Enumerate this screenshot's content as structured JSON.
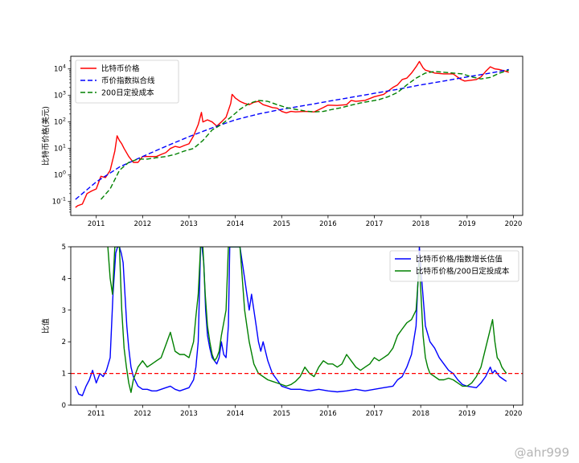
{
  "watermark": "@ahr999",
  "chart_data": [
    {
      "type": "line",
      "xlabel": "",
      "ylabel": "比特币价格(美元)",
      "yscale": "log",
      "xlim": [
        2010.45,
        2020.2
      ],
      "ylim": [
        0.03,
        30000
      ],
      "x_ticks": [
        "2011",
        "2012",
        "2013",
        "2014",
        "2015",
        "2016",
        "2017",
        "2018",
        "2019",
        "2020"
      ],
      "y_ticks": [
        {
          "value": 0.1,
          "base": "10",
          "exp": "-1"
        },
        {
          "value": 1,
          "base": "10",
          "exp": "0"
        },
        {
          "value": 10,
          "base": "10",
          "exp": "1"
        },
        {
          "value": 100,
          "base": "10",
          "exp": "2"
        },
        {
          "value": 1000,
          "base": "10",
          "exp": "3"
        },
        {
          "value": 10000,
          "base": "10",
          "exp": "4"
        }
      ],
      "legend_position": "top-left",
      "series": [
        {
          "name": "比特币价格",
          "color": "#ff0000",
          "style": "solid",
          "x": [
            2010.55,
            2010.6,
            2010.7,
            2010.8,
            2010.9,
            2011.0,
            2011.1,
            2011.2,
            2011.3,
            2011.4,
            2011.45,
            2011.5,
            2011.55,
            2011.6,
            2011.7,
            2011.8,
            2011.9,
            2012.0,
            2012.1,
            2012.2,
            2012.3,
            2012.4,
            2012.5,
            2012.6,
            2012.7,
            2012.8,
            2012.9,
            2013.0,
            2013.1,
            2013.2,
            2013.27,
            2013.3,
            2013.4,
            2013.5,
            2013.6,
            2013.7,
            2013.8,
            2013.9,
            2013.93,
            2014.0,
            2014.1,
            2014.2,
            2014.3,
            2014.4,
            2014.5,
            2014.6,
            2014.7,
            2014.8,
            2014.9,
            2015.0,
            2015.1,
            2015.2,
            2015.3,
            2015.5,
            2015.7,
            2015.9,
            2016.0,
            2016.2,
            2016.4,
            2016.5,
            2016.6,
            2016.8,
            2017.0,
            2017.2,
            2017.4,
            2017.5,
            2017.6,
            2017.7,
            2017.8,
            2017.9,
            2017.97,
            2018.05,
            2018.1,
            2018.2,
            2018.3,
            2018.5,
            2018.7,
            2018.87,
            2018.95,
            2019.0,
            2019.2,
            2019.3,
            2019.4,
            2019.5,
            2019.6,
            2019.7,
            2019.8,
            2019.9
          ],
          "y": [
            0.06,
            0.07,
            0.08,
            0.2,
            0.25,
            0.3,
            0.9,
            0.8,
            1.5,
            8,
            30,
            20,
            15,
            10,
            5,
            3,
            3,
            5,
            5,
            5,
            5,
            6,
            7,
            10,
            12,
            11,
            13,
            15,
            30,
            80,
            230,
            100,
            120,
            100,
            70,
            100,
            150,
            500,
            1100,
            800,
            600,
            500,
            450,
            550,
            600,
            450,
            400,
            350,
            330,
            250,
            220,
            250,
            240,
            250,
            240,
            350,
            430,
            420,
            450,
            650,
            600,
            650,
            900,
            1100,
            2000,
            2500,
            4000,
            4500,
            7000,
            12000,
            19000,
            11000,
            9000,
            8000,
            7000,
            6500,
            6500,
            4000,
            3500,
            3600,
            4000,
            5000,
            8000,
            12000,
            10000,
            9500,
            8500,
            7500
          ]
        },
        {
          "name": "币价指数拟合线",
          "color": "#0000ff",
          "style": "dashed",
          "x": [
            2010.55,
            2011.0,
            2011.5,
            2012.0,
            2012.5,
            2013.0,
            2013.5,
            2014.0,
            2014.5,
            2015.0,
            2015.5,
            2016.0,
            2016.5,
            2017.0,
            2017.5,
            2018.0,
            2018.5,
            2019.0,
            2019.5,
            2019.9
          ],
          "y": [
            0.12,
            0.55,
            2,
            5,
            12,
            28,
            60,
            120,
            200,
            300,
            420,
            600,
            850,
            1200,
            1700,
            2500,
            3500,
            5000,
            7000,
            9500
          ]
        },
        {
          "name": "200日定投成本",
          "color": "#008000",
          "style": "dashed",
          "x": [
            2011.1,
            2011.3,
            2011.5,
            2011.7,
            2011.9,
            2012.1,
            2012.3,
            2012.5,
            2012.7,
            2012.9,
            2013.1,
            2013.3,
            2013.5,
            2013.7,
            2013.9,
            2014.1,
            2014.3,
            2014.5,
            2014.7,
            2014.9,
            2015.1,
            2015.3,
            2015.5,
            2015.7,
            2015.9,
            2016.1,
            2016.3,
            2016.5,
            2016.7,
            2016.9,
            2017.1,
            2017.3,
            2017.5,
            2017.7,
            2017.9,
            2018.1,
            2018.3,
            2018.5,
            2018.7,
            2018.9,
            2019.1,
            2019.3,
            2019.5,
            2019.7,
            2019.9
          ],
          "y": [
            0.12,
            0.3,
            1.5,
            3,
            4,
            4,
            4.5,
            5,
            6,
            8,
            10,
            20,
            50,
            80,
            150,
            300,
            500,
            650,
            600,
            450,
            350,
            300,
            260,
            240,
            250,
            300,
            350,
            430,
            520,
            600,
            700,
            900,
            1300,
            2500,
            4500,
            7000,
            8000,
            7500,
            7000,
            6500,
            5000,
            4200,
            4800,
            7000,
            9000
          ]
        }
      ]
    },
    {
      "type": "line",
      "xlabel": "",
      "ylabel": "比值",
      "xlim": [
        2010.45,
        2020.2
      ],
      "ylim": [
        0,
        5
      ],
      "x_ticks": [
        "2011",
        "2012",
        "2013",
        "2014",
        "2015",
        "2016",
        "2017",
        "2018",
        "2019",
        "2020"
      ],
      "y_ticks": [
        "0",
        "1",
        "2",
        "3",
        "4",
        "5"
      ],
      "reference_line": {
        "y": 1,
        "color": "#ff0000",
        "style": "dashed"
      },
      "legend_position": "top-right",
      "series": [
        {
          "name": "比特币价格/指数增长估值",
          "color": "#0000ff",
          "style": "solid",
          "x": [
            2010.55,
            2010.62,
            2010.7,
            2010.78,
            2010.85,
            2010.92,
            2011.0,
            2011.08,
            2011.15,
            2011.22,
            2011.3,
            2011.36,
            2011.42,
            2011.46,
            2011.5,
            2011.54,
            2011.58,
            2011.62,
            2011.66,
            2011.7,
            2011.75,
            2011.8,
            2011.9,
            2012.0,
            2012.1,
            2012.2,
            2012.3,
            2012.4,
            2012.5,
            2012.6,
            2012.7,
            2012.8,
            2012.9,
            2013.0,
            2013.1,
            2013.15,
            2013.2,
            2013.25,
            2013.28,
            2013.32,
            2013.36,
            2013.4,
            2013.45,
            2013.5,
            2013.55,
            2013.6,
            2013.65,
            2013.7,
            2013.75,
            2013.8,
            2013.85,
            2013.88,
            2013.92,
            2013.96,
            2014.0,
            2014.05,
            2014.1,
            2014.15,
            2014.2,
            2014.25,
            2014.3,
            2014.35,
            2014.4,
            2014.45,
            2014.5,
            2014.55,
            2014.6,
            2014.7,
            2014.8,
            2014.9,
            2015.0,
            2015.2,
            2015.4,
            2015.6,
            2015.8,
            2016.0,
            2016.2,
            2016.4,
            2016.6,
            2016.8,
            2017.0,
            2017.2,
            2017.4,
            2017.5,
            2017.6,
            2017.7,
            2017.8,
            2017.9,
            2017.97,
            2018.02,
            2018.1,
            2018.2,
            2018.3,
            2018.4,
            2018.5,
            2018.6,
            2018.7,
            2018.8,
            2018.9,
            2019.0,
            2019.2,
            2019.3,
            2019.4,
            2019.5,
            2019.55,
            2019.6,
            2019.7,
            2019.8,
            2019.85
          ],
          "y": [
            0.6,
            0.35,
            0.3,
            0.6,
            0.8,
            1.1,
            0.7,
            1.0,
            0.9,
            1.1,
            1.5,
            3.5,
            4.8,
            5,
            5,
            4.8,
            4.5,
            3.5,
            2.5,
            1.8,
            1.2,
            0.9,
            0.6,
            0.5,
            0.5,
            0.45,
            0.45,
            0.5,
            0.55,
            0.6,
            0.5,
            0.45,
            0.5,
            0.55,
            0.8,
            1.2,
            2.0,
            5,
            5,
            4.5,
            3,
            2.2,
            1.8,
            1.5,
            1.4,
            1.3,
            1.5,
            2.0,
            1.6,
            1.5,
            2.5,
            5,
            5,
            5,
            5,
            5,
            5,
            4.5,
            4.0,
            3.5,
            3.0,
            3.5,
            3.0,
            2.5,
            2.0,
            1.7,
            2.0,
            1.4,
            1.0,
            0.8,
            0.6,
            0.5,
            0.5,
            0.45,
            0.5,
            0.45,
            0.42,
            0.45,
            0.5,
            0.45,
            0.5,
            0.55,
            0.6,
            0.8,
            0.9,
            1.2,
            1.6,
            2.5,
            5,
            4.0,
            2.5,
            2.0,
            1.8,
            1.5,
            1.3,
            1.1,
            1.0,
            0.8,
            0.65,
            0.6,
            0.55,
            0.7,
            0.9,
            1.2,
            1.0,
            1.1,
            0.9,
            0.8,
            0.75
          ]
        },
        {
          "name": "比特币价格/200日定投成本",
          "color": "#008000",
          "style": "solid",
          "x": [
            2011.25,
            2011.3,
            2011.35,
            2011.4,
            2011.45,
            2011.5,
            2011.55,
            2011.6,
            2011.65,
            2011.7,
            2011.75,
            2011.8,
            2011.85,
            2011.9,
            2012.0,
            2012.1,
            2012.2,
            2012.3,
            2012.4,
            2012.5,
            2012.6,
            2012.65,
            2012.7,
            2012.8,
            2012.9,
            2013.0,
            2013.1,
            2013.15,
            2013.2,
            2013.25,
            2013.3,
            2013.35,
            2013.4,
            2013.45,
            2013.5,
            2013.55,
            2013.6,
            2013.65,
            2013.7,
            2013.75,
            2013.8,
            2013.85,
            2013.9,
            2013.95,
            2014.0,
            2014.05,
            2014.1,
            2014.15,
            2014.2,
            2014.25,
            2014.3,
            2014.4,
            2014.5,
            2014.6,
            2014.7,
            2014.8,
            2014.9,
            2015.0,
            2015.1,
            2015.2,
            2015.3,
            2015.4,
            2015.5,
            2015.6,
            2015.7,
            2015.8,
            2015.9,
            2016.0,
            2016.1,
            2016.2,
            2016.3,
            2016.4,
            2016.5,
            2016.6,
            2016.7,
            2016.8,
            2016.9,
            2017.0,
            2017.1,
            2017.2,
            2017.3,
            2017.4,
            2017.5,
            2017.6,
            2017.7,
            2017.8,
            2017.9,
            2017.97,
            2018.05,
            2018.1,
            2018.15,
            2018.2,
            2018.3,
            2018.4,
            2018.5,
            2018.6,
            2018.7,
            2018.8,
            2018.9,
            2019.0,
            2019.1,
            2019.2,
            2019.3,
            2019.4,
            2019.5,
            2019.55,
            2019.6,
            2019.65,
            2019.7,
            2019.75,
            2019.8,
            2019.85
          ],
          "y": [
            5,
            4.0,
            3.5,
            5,
            5,
            5,
            3,
            1.8,
            1.2,
            0.7,
            0.4,
            0.8,
            1.0,
            1.2,
            1.4,
            1.2,
            1.3,
            1.4,
            1.5,
            1.9,
            2.3,
            2.0,
            1.7,
            1.6,
            1.6,
            1.5,
            2.0,
            2.8,
            3.5,
            5,
            5,
            3.5,
            2.5,
            2.0,
            1.6,
            1.4,
            1.5,
            1.7,
            2.2,
            2.6,
            3.0,
            5,
            5,
            5,
            5,
            5,
            5,
            4.0,
            3.0,
            2.5,
            2.0,
            1.3,
            1.0,
            0.9,
            0.8,
            0.75,
            0.7,
            0.65,
            0.6,
            0.65,
            0.75,
            0.9,
            1.2,
            1.0,
            0.9,
            1.2,
            1.4,
            1.3,
            1.3,
            1.2,
            1.3,
            1.6,
            1.4,
            1.2,
            1.1,
            1.2,
            1.3,
            1.5,
            1.4,
            1.5,
            1.6,
            1.8,
            2.2,
            2.4,
            2.6,
            2.7,
            3.0,
            4.5,
            2.2,
            1.5,
            1.2,
            1.0,
            0.9,
            0.8,
            0.8,
            0.85,
            0.8,
            0.7,
            0.6,
            0.6,
            0.7,
            0.9,
            1.2,
            1.8,
            2.4,
            2.7,
            2.0,
            1.5,
            1.4,
            1.2,
            1.1,
            1.0
          ]
        }
      ]
    }
  ]
}
